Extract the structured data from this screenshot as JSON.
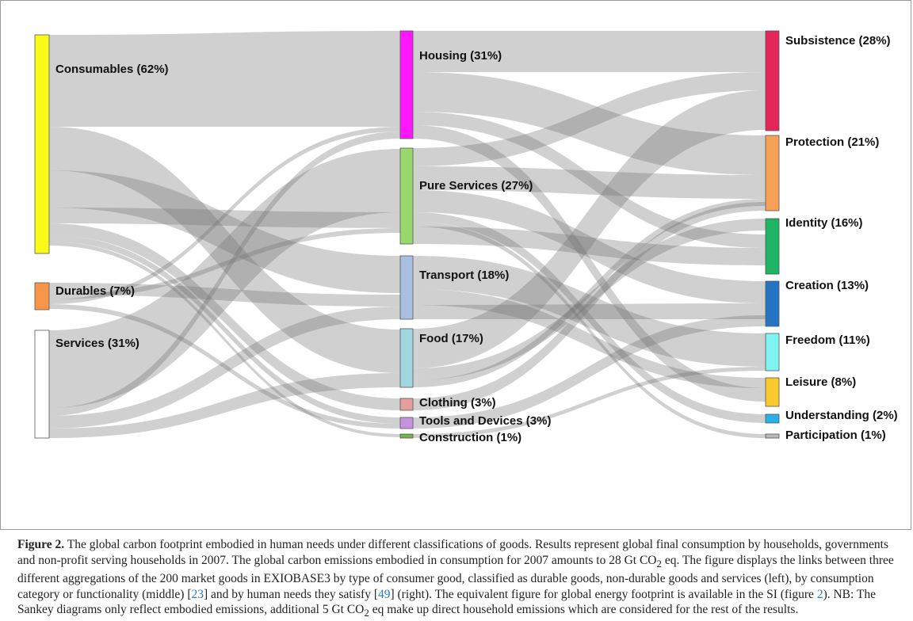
{
  "nodes": {
    "left": [
      {
        "id": "consumables",
        "label": "Consumables (62%)",
        "color": "#f9f91a"
      },
      {
        "id": "durables",
        "label": "Durables (7%)",
        "color": "#f7964a"
      },
      {
        "id": "services",
        "label": "Services (31%)",
        "color": "#ffffff"
      }
    ],
    "middle": [
      {
        "id": "housing",
        "label": "Housing (31%)",
        "color": "#ff17ff"
      },
      {
        "id": "pure_services",
        "label": "Pure Services (27%)",
        "color": "#99d86a"
      },
      {
        "id": "transport",
        "label": "Transport (18%)",
        "color": "#a9bfe2"
      },
      {
        "id": "food",
        "label": "Food (17%)",
        "color": "#9fd6e0"
      },
      {
        "id": "clothing",
        "label": "Clothing (3%)",
        "color": "#e3a09a"
      },
      {
        "id": "tools",
        "label": "Tools and Devices (3%)",
        "color": "#c691de"
      },
      {
        "id": "construction",
        "label": "Construction (1%)",
        "color": "#78b24a"
      }
    ],
    "right": [
      {
        "id": "subsistence",
        "label": "Subsistence (28%)",
        "color": "#e3255a"
      },
      {
        "id": "protection",
        "label": "Protection (21%)",
        "color": "#f7a157"
      },
      {
        "id": "identity",
        "label": "Identity (16%)",
        "color": "#1db564"
      },
      {
        "id": "creation",
        "label": "Creation (13%)",
        "color": "#2574c4"
      },
      {
        "id": "freedom",
        "label": "Freedom (11%)",
        "color": "#7ef5f3"
      },
      {
        "id": "leisure",
        "label": "Leisure (8%)",
        "color": "#fcc92c"
      },
      {
        "id": "understanding",
        "label": "Understanding (2%)",
        "color": "#27b1e8"
      },
      {
        "id": "participation",
        "label": "Participation (1%)",
        "color": "#b9b9b9"
      }
    ]
  },
  "caption": {
    "fig_label": "Figure 2.",
    "part1": " The global carbon footprint embodied in human needs under different classifications of goods. Results represent global final consumption by households, governments and non-profit serving households in 2007. The global carbon emissions embodied in consumption for 2007 amounts to 28 Gt CO",
    "sub1": "2",
    "part2": " eq. The figure displays the links between three different aggregations of the 200 market goods in EXIOBASE3 by type of consumer good, classified as durable goods, non-durable goods and services (left), by consumption category or functionality (middle) [",
    "ref1": "23",
    "part3": "] and by human needs they satisfy [",
    "ref2": "49",
    "part4": "] (right). The equivalent figure for global energy footprint is available in the SI (figure ",
    "ref3": "2",
    "part5": "). NB: The Sankey diagrams only reflect embodied emissions, additional 5 Gt CO",
    "sub2": "2",
    "part6": " eq make up direct household emissions which are considered for the rest of the results."
  }
}
